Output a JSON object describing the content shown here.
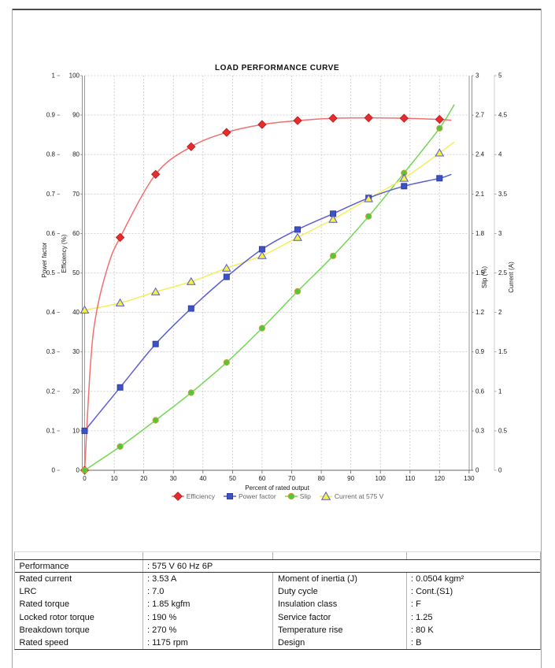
{
  "chart_data": {
    "type": "line",
    "title": "LOAD PERFORMANCE CURVE",
    "xlabel": "Percent of rated output",
    "xlim": [
      0,
      130
    ],
    "x_ticks": [
      "0",
      "10",
      "20",
      "30",
      "40",
      "50",
      "60",
      "70",
      "80",
      "90",
      "100",
      "110",
      "120",
      "130"
    ],
    "grid": true,
    "legend_position": "bottom",
    "axes": [
      {
        "id": "power_factor",
        "title": "Power factor",
        "side": "left",
        "range": [
          0,
          1
        ],
        "ticks": [
          "0",
          "0.1",
          "0.2",
          "0.3",
          "0.4",
          "0.5",
          "0.6",
          "0.7",
          "0.8",
          "0.9",
          "1"
        ]
      },
      {
        "id": "efficiency",
        "title": "Efficiency (%)",
        "side": "left",
        "range": [
          0,
          100
        ],
        "ticks": [
          "0",
          "10",
          "20",
          "30",
          "40",
          "50",
          "60",
          "70",
          "80",
          "90",
          "100"
        ]
      },
      {
        "id": "slip",
        "title": "Slip (%)",
        "side": "right",
        "range": [
          0,
          3
        ],
        "ticks": [
          "0",
          "0.3",
          "0.6",
          "0.9",
          "1.2",
          "1.5",
          "1.8",
          "2.1",
          "2.4",
          "2.7",
          "3"
        ]
      },
      {
        "id": "current",
        "title": "Current (A)",
        "side": "right",
        "range": [
          0,
          5
        ],
        "ticks": [
          "0",
          "0.5",
          "1",
          "1.5",
          "2",
          "2.5",
          "3",
          "3.5",
          "4",
          "4.5",
          "5"
        ]
      }
    ],
    "x": [
      0,
      12,
      24,
      36,
      48,
      60,
      72,
      84,
      96,
      108,
      120
    ],
    "series": [
      {
        "name": "Efficiency",
        "axis": "efficiency",
        "marker": "diamond",
        "marker_color": "#e62e2e",
        "marker_edge": "#bf1f1f",
        "line_color": "#f07070",
        "values": [
          0,
          59,
          75,
          82,
          85.6,
          87.6,
          88.6,
          89.2,
          89.3,
          89.2,
          88.9
        ],
        "lead_in": [
          [
            2,
            27
          ],
          [
            4,
            40
          ],
          [
            8,
            52
          ]
        ],
        "line_end": [
          124,
          88.7
        ]
      },
      {
        "name": "Power factor",
        "axis": "power_factor",
        "marker": "square",
        "marker_color": "#3d52c4",
        "marker_edge": "#2f3d9e",
        "line_color": "#5d5dd8",
        "values": [
          0.1,
          0.21,
          0.32,
          0.41,
          0.49,
          0.56,
          0.61,
          0.65,
          0.69,
          0.72,
          0.74
        ],
        "line_end": [
          124,
          0.75
        ]
      },
      {
        "name": "Slip",
        "axis": "slip",
        "marker": "circle",
        "marker_color": "#4ec937",
        "marker_edge": "#d49a36",
        "line_color": "#72d854",
        "values": [
          0,
          0.18,
          0.38,
          0.59,
          0.82,
          1.08,
          1.36,
          1.63,
          1.93,
          2.26,
          2.6
        ],
        "line_end": [
          125,
          2.78
        ]
      },
      {
        "name": "Current at 575 V",
        "axis": "current",
        "marker": "triangle",
        "marker_color": "#f5f046",
        "marker_edge": "#5757cf",
        "line_color": "#f3ef5a",
        "values": [
          2.03,
          2.12,
          2.26,
          2.39,
          2.56,
          2.72,
          2.95,
          3.18,
          3.44,
          3.7,
          4.02
        ],
        "line_end": [
          125,
          4.16
        ]
      }
    ]
  },
  "table": {
    "performance": {
      "label": "Performance",
      "value": ": 575 V 60 Hz 6P"
    },
    "left_rows": [
      {
        "label": "Rated current",
        "value": ": 3.53 A"
      },
      {
        "label": "LRC",
        "value": ": 7.0"
      },
      {
        "label": "Rated torque",
        "value": ": 1.85 kgfm"
      },
      {
        "label": "Locked rotor torque",
        "value": ": 190 %"
      },
      {
        "label": "Breakdown torque",
        "value": ": 270 %"
      },
      {
        "label": "Rated speed",
        "value": ": 1175 rpm"
      }
    ],
    "right_rows": [
      {
        "label": "Moment of inertia (J)",
        "value": ": 0.0504 kgm²"
      },
      {
        "label": "Duty cycle",
        "value": ": Cont.(S1)"
      },
      {
        "label": "Insulation class",
        "value": ": F"
      },
      {
        "label": "Service factor",
        "value": ": 1.25"
      },
      {
        "label": "Temperature rise",
        "value": ": 80 K"
      },
      {
        "label": "Design",
        "value": ": B"
      }
    ]
  }
}
